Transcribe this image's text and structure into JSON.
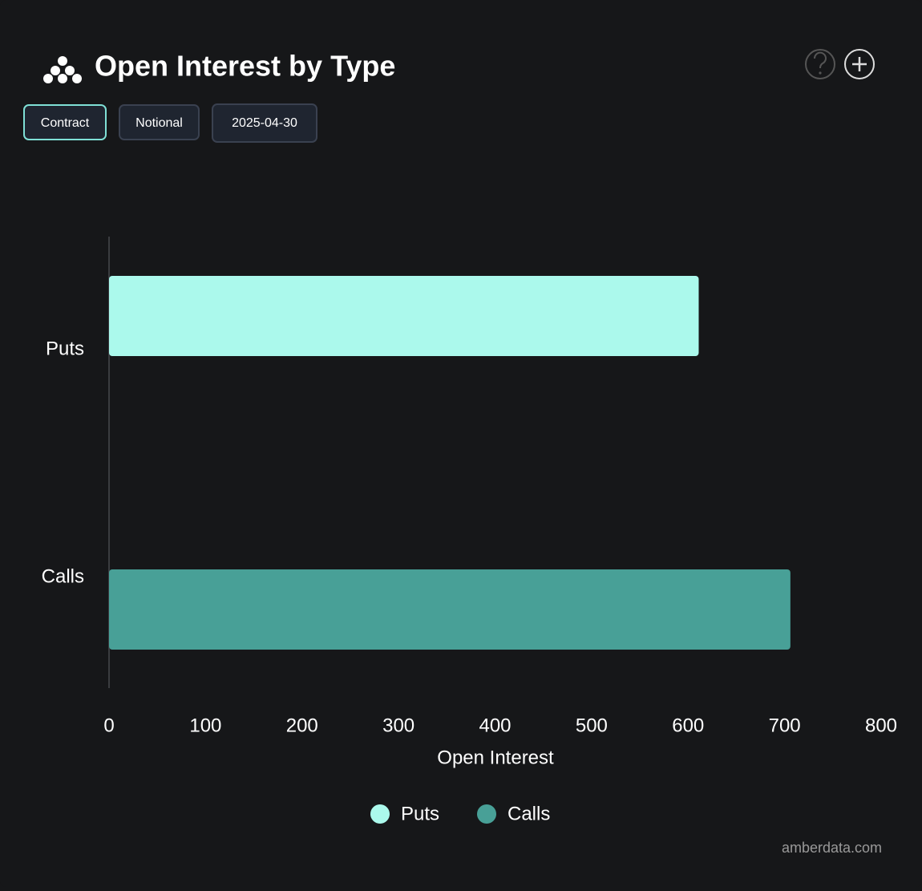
{
  "chart_data": {
    "type": "bar",
    "orientation": "horizontal",
    "title": "Open Interest by Type",
    "controls": [
      "Contract",
      "Notional",
      "2025-04-30"
    ],
    "categories": [
      "Puts",
      "Calls"
    ],
    "values": [
      611,
      706
    ],
    "colors": [
      "#abf9ec",
      "#48a097"
    ],
    "x_label": "Open Interest",
    "xlim": [
      0,
      800
    ],
    "xticks": [
      0,
      100,
      200,
      300,
      400,
      500,
      600,
      700,
      800
    ],
    "grid": false,
    "legend": "bottom",
    "footer": "amberdata.com"
  }
}
